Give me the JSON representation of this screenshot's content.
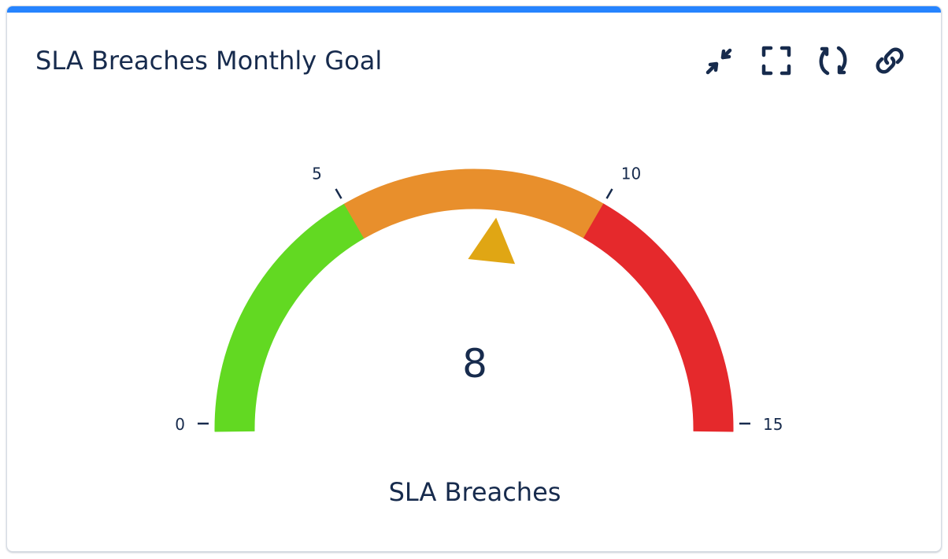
{
  "widget": {
    "title": "SLA Breaches Monthly Goal",
    "accent_color": "#2684ff",
    "toolbar": [
      {
        "name": "minimize-button",
        "icon": "minimize-arrows-icon",
        "label": "Minimize"
      },
      {
        "name": "fullscreen-button",
        "icon": "fullscreen-icon",
        "label": "Full screen"
      },
      {
        "name": "refresh-button",
        "icon": "refresh-icon",
        "label": "Refresh"
      },
      {
        "name": "link-button",
        "icon": "link-icon",
        "label": "Copy link"
      }
    ]
  },
  "chart_data": {
    "type": "gauge",
    "title": "SLA Breaches Monthly Goal",
    "label": "SLA Breaches",
    "value": 8,
    "value_display": "8",
    "min": 0,
    "max": 15,
    "ticks": [
      {
        "value": 0,
        "label": "0"
      },
      {
        "value": 5,
        "label": "5"
      },
      {
        "value": 10,
        "label": "10"
      },
      {
        "value": 15,
        "label": "15"
      }
    ],
    "bands": [
      {
        "from": 0,
        "to": 5,
        "color": "#62d922"
      },
      {
        "from": 5,
        "to": 10,
        "color": "#e88f2c"
      },
      {
        "from": 10,
        "to": 15,
        "color": "#e5292c"
      }
    ],
    "needle_color": "#e0a614",
    "text_color": "#172b4d"
  }
}
